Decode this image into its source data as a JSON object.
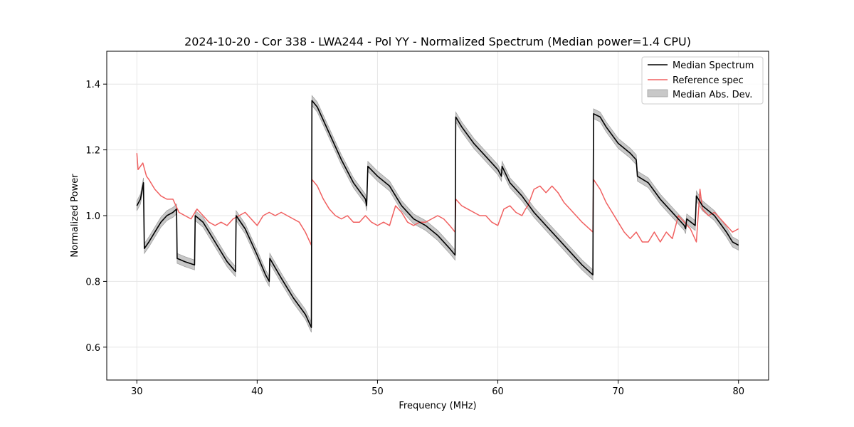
{
  "chart_data": {
    "type": "line",
    "title": "2024-10-20 - Cor 338 - LWA244 - Pol YY - Normalized Spectrum (Median power=1.4 CPU)",
    "xlabel": "Frequency (MHz)",
    "ylabel": "Normalized Power",
    "xlim": [
      27.5,
      82.5
    ],
    "ylim": [
      0.5,
      1.5
    ],
    "xticks": [
      30,
      40,
      50,
      60,
      70,
      80
    ],
    "yticks": [
      0.6,
      0.8,
      1.0,
      1.2,
      1.4
    ],
    "grid": true,
    "legend_position": "top-right",
    "legend": [
      "Median Spectrum",
      "Reference spec",
      "Median Abs. Dev."
    ],
    "colors": {
      "median": "#000000",
      "reference": "#f06060",
      "mad_fill": "#c8c8c8",
      "mad_edge": "#a0a0a0",
      "grid": "#e6e6e6"
    },
    "series": [
      {
        "name": "Median Spectrum",
        "points": [
          [
            30.0,
            1.03
          ],
          [
            30.3,
            1.05
          ],
          [
            30.55,
            1.1
          ],
          [
            30.62,
            0.9
          ],
          [
            31.0,
            0.92
          ],
          [
            31.5,
            0.95
          ],
          [
            32.0,
            0.98
          ],
          [
            32.5,
            1.0
          ],
          [
            33.0,
            1.01
          ],
          [
            33.3,
            1.02
          ],
          [
            33.35,
            0.87
          ],
          [
            34.0,
            0.86
          ],
          [
            34.8,
            0.85
          ],
          [
            34.85,
            1.0
          ],
          [
            35.5,
            0.98
          ],
          [
            36.5,
            0.92
          ],
          [
            37.5,
            0.86
          ],
          [
            38.2,
            0.83
          ],
          [
            38.25,
            1.0
          ],
          [
            39.0,
            0.96
          ],
          [
            40.0,
            0.88
          ],
          [
            40.7,
            0.82
          ],
          [
            41.0,
            0.8
          ],
          [
            41.05,
            0.87
          ],
          [
            42.0,
            0.81
          ],
          [
            43.0,
            0.75
          ],
          [
            44.0,
            0.7
          ],
          [
            44.5,
            0.66
          ],
          [
            44.55,
            1.35
          ],
          [
            45.0,
            1.33
          ],
          [
            46.0,
            1.25
          ],
          [
            47.0,
            1.17
          ],
          [
            48.0,
            1.1
          ],
          [
            49.0,
            1.05
          ],
          [
            49.1,
            1.03
          ],
          [
            49.2,
            1.15
          ],
          [
            50.0,
            1.12
          ],
          [
            51.0,
            1.09
          ],
          [
            52.0,
            1.03
          ],
          [
            53.0,
            0.99
          ],
          [
            54.0,
            0.97
          ],
          [
            55.0,
            0.94
          ],
          [
            56.0,
            0.9
          ],
          [
            56.45,
            0.88
          ],
          [
            56.5,
            1.3
          ],
          [
            57.0,
            1.27
          ],
          [
            58.0,
            1.22
          ],
          [
            59.0,
            1.18
          ],
          [
            60.0,
            1.14
          ],
          [
            60.3,
            1.12
          ],
          [
            60.35,
            1.15
          ],
          [
            61.0,
            1.1
          ],
          [
            62.0,
            1.06
          ],
          [
            63.0,
            1.01
          ],
          [
            64.0,
            0.97
          ],
          [
            65.0,
            0.93
          ],
          [
            66.0,
            0.89
          ],
          [
            67.0,
            0.85
          ],
          [
            67.9,
            0.82
          ],
          [
            67.95,
            1.31
          ],
          [
            68.5,
            1.3
          ],
          [
            69.0,
            1.27
          ],
          [
            70.0,
            1.22
          ],
          [
            71.0,
            1.19
          ],
          [
            71.5,
            1.17
          ],
          [
            71.6,
            1.12
          ],
          [
            72.5,
            1.1
          ],
          [
            73.5,
            1.05
          ],
          [
            74.5,
            1.01
          ],
          [
            75.5,
            0.97
          ],
          [
            75.6,
            0.96
          ],
          [
            75.7,
            0.99
          ],
          [
            76.4,
            0.97
          ],
          [
            76.5,
            1.06
          ],
          [
            77.0,
            1.03
          ],
          [
            78.0,
            1.0
          ],
          [
            79.0,
            0.95
          ],
          [
            79.5,
            0.92
          ],
          [
            80.0,
            0.91
          ]
        ]
      },
      {
        "name": "Reference spec",
        "points": [
          [
            30.0,
            1.19
          ],
          [
            30.1,
            1.14
          ],
          [
            30.5,
            1.16
          ],
          [
            30.8,
            1.12
          ],
          [
            31.0,
            1.11
          ],
          [
            31.5,
            1.08
          ],
          [
            32.0,
            1.06
          ],
          [
            32.5,
            1.05
          ],
          [
            33.0,
            1.05
          ],
          [
            33.5,
            1.01
          ],
          [
            34.0,
            1.0
          ],
          [
            34.5,
            0.99
          ],
          [
            35.0,
            1.02
          ],
          [
            35.5,
            1.0
          ],
          [
            36.0,
            0.98
          ],
          [
            36.5,
            0.97
          ],
          [
            37.0,
            0.98
          ],
          [
            37.5,
            0.97
          ],
          [
            38.0,
            0.99
          ],
          [
            38.5,
            1.0
          ],
          [
            39.0,
            1.01
          ],
          [
            39.5,
            0.99
          ],
          [
            40.0,
            0.97
          ],
          [
            40.5,
            1.0
          ],
          [
            41.0,
            1.01
          ],
          [
            41.5,
            1.0
          ],
          [
            42.0,
            1.01
          ],
          [
            42.5,
            1.0
          ],
          [
            43.0,
            0.99
          ],
          [
            43.5,
            0.98
          ],
          [
            44.0,
            0.95
          ],
          [
            44.5,
            0.91
          ],
          [
            44.55,
            1.11
          ],
          [
            45.0,
            1.09
          ],
          [
            45.5,
            1.05
          ],
          [
            46.0,
            1.02
          ],
          [
            46.5,
            1.0
          ],
          [
            47.0,
            0.99
          ],
          [
            47.5,
            1.0
          ],
          [
            48.0,
            0.98
          ],
          [
            48.5,
            0.98
          ],
          [
            49.0,
            1.0
          ],
          [
            49.5,
            0.98
          ],
          [
            50.0,
            0.97
          ],
          [
            50.5,
            0.98
          ],
          [
            51.0,
            0.97
          ],
          [
            51.5,
            1.03
          ],
          [
            52.0,
            1.01
          ],
          [
            52.5,
            0.98
          ],
          [
            53.0,
            0.97
          ],
          [
            53.5,
            0.98
          ],
          [
            54.0,
            0.98
          ],
          [
            54.5,
            0.99
          ],
          [
            55.0,
            1.0
          ],
          [
            55.5,
            0.99
          ],
          [
            56.0,
            0.97
          ],
          [
            56.45,
            0.95
          ],
          [
            56.5,
            1.05
          ],
          [
            57.0,
            1.03
          ],
          [
            57.5,
            1.02
          ],
          [
            58.0,
            1.01
          ],
          [
            58.5,
            1.0
          ],
          [
            59.0,
            1.0
          ],
          [
            59.5,
            0.98
          ],
          [
            60.0,
            0.97
          ],
          [
            60.5,
            1.02
          ],
          [
            61.0,
            1.03
          ],
          [
            61.5,
            1.01
          ],
          [
            62.0,
            1.0
          ],
          [
            62.3,
            1.02
          ],
          [
            62.5,
            1.03
          ],
          [
            63.0,
            1.08
          ],
          [
            63.5,
            1.09
          ],
          [
            64.0,
            1.07
          ],
          [
            64.5,
            1.09
          ],
          [
            65.0,
            1.07
          ],
          [
            65.5,
            1.04
          ],
          [
            66.0,
            1.02
          ],
          [
            66.5,
            1.0
          ],
          [
            67.0,
            0.98
          ],
          [
            67.9,
            0.95
          ],
          [
            67.95,
            1.11
          ],
          [
            68.5,
            1.08
          ],
          [
            69.0,
            1.04
          ],
          [
            69.5,
            1.01
          ],
          [
            70.0,
            0.98
          ],
          [
            70.5,
            0.95
          ],
          [
            71.0,
            0.93
          ],
          [
            71.5,
            0.95
          ],
          [
            72.0,
            0.92
          ],
          [
            72.5,
            0.92
          ],
          [
            73.0,
            0.95
          ],
          [
            73.5,
            0.92
          ],
          [
            74.0,
            0.95
          ],
          [
            74.5,
            0.93
          ],
          [
            75.0,
            1.0
          ],
          [
            75.5,
            0.98
          ],
          [
            76.0,
            0.96
          ],
          [
            76.5,
            0.92
          ],
          [
            76.8,
            1.08
          ],
          [
            77.0,
            1.02
          ],
          [
            77.5,
            1.0
          ],
          [
            78.0,
            1.01
          ],
          [
            78.5,
            0.99
          ],
          [
            79.0,
            0.97
          ],
          [
            79.5,
            0.95
          ],
          [
            80.0,
            0.96
          ]
        ]
      },
      {
        "name": "Median Abs. Dev.",
        "spread": 0.015
      }
    ]
  }
}
